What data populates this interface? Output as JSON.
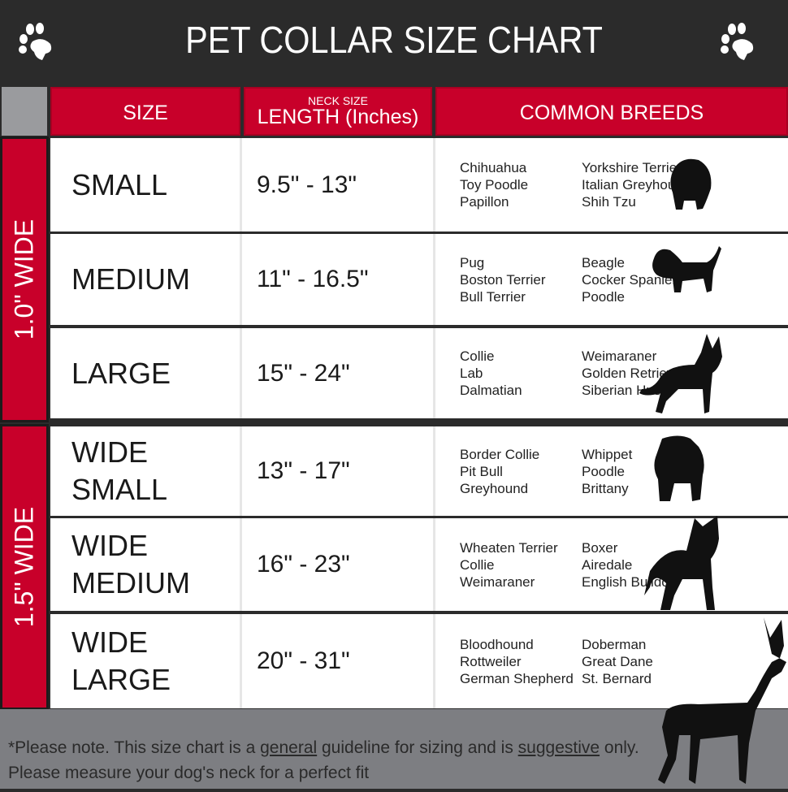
{
  "title": "PET COLLAR SIZE CHART",
  "headers": {
    "size": "SIZE",
    "length_small": "NECK SIZE",
    "length": "LENGTH (Inches)",
    "breeds": "COMMON BREEDS"
  },
  "groups": [
    {
      "label": "1.0\" WIDE"
    },
    {
      "label": "1.5\" WIDE"
    }
  ],
  "rows": [
    {
      "size": [
        "SMALL"
      ],
      "length": "9.5\" - 13\"",
      "breeds_left": [
        "Chihuahua",
        "Toy Poodle",
        "Papillon"
      ],
      "breeds_right": [
        "Yorkshire Terrier",
        "Italian Greyhound",
        "Shih Tzu"
      ]
    },
    {
      "size": [
        "MEDIUM"
      ],
      "length": "11\" - 16.5\"",
      "breeds_left": [
        "Pug",
        "Boston Terrier",
        "Bull Terrier"
      ],
      "breeds_right": [
        "Beagle",
        "Cocker Spaniel",
        "Poodle"
      ]
    },
    {
      "size": [
        "LARGE"
      ],
      "length": "15\" - 24\"",
      "breeds_left": [
        "Collie",
        "Lab",
        "Dalmatian"
      ],
      "breeds_right": [
        "Weimaraner",
        "Golden Retriever",
        "Siberian Husky"
      ]
    },
    {
      "size": [
        "WIDE",
        "SMALL"
      ],
      "length": "13\" - 17\"",
      "breeds_left": [
        "Border Collie",
        "Pit Bull",
        "Greyhound"
      ],
      "breeds_right": [
        "Whippet",
        "Poodle",
        "Brittany"
      ]
    },
    {
      "size": [
        "WIDE",
        "MEDIUM"
      ],
      "length": "16\" - 23\"",
      "breeds_left": [
        "Wheaten Terrier",
        "Collie",
        "Weimaraner"
      ],
      "breeds_right": [
        "Boxer",
        "Airedale",
        "English Bulldog"
      ]
    },
    {
      "size": [
        "WIDE",
        "LARGE"
      ],
      "length": "20\" - 31\"",
      "breeds_left": [
        "Bloodhound",
        "Rottweiler",
        "German Shepherd"
      ],
      "breeds_right": [
        "Doberman",
        "Great Dane",
        "St. Bernard"
      ]
    }
  ],
  "footer": {
    "p1": "*Please note. This size chart is a ",
    "u1": "general",
    "p2": " guideline for sizing and is ",
    "u2": "suggestive",
    "p3": " only.",
    "line2": "Please measure your dog's neck for a perfect fit"
  },
  "colors": {
    "header_bg": "#2b2b2b",
    "accent_red": "#c8002a",
    "footer_bg": "#7d7e82"
  }
}
